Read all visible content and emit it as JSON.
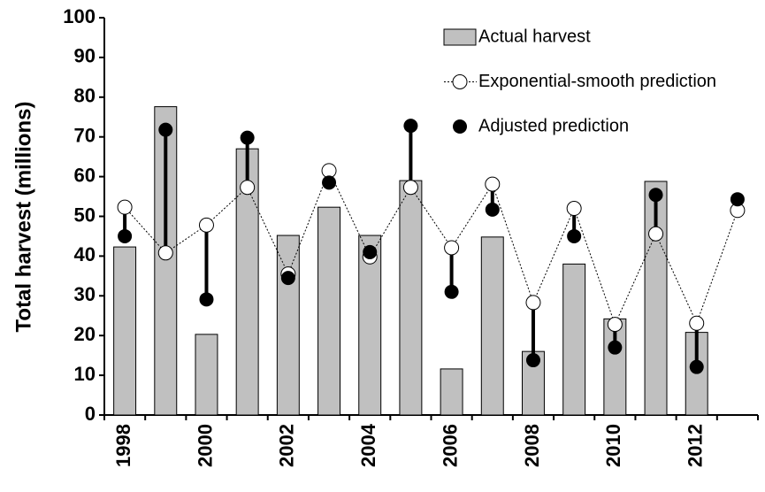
{
  "chart_data": {
    "type": "bar",
    "y_label": "Total harvest (millions)",
    "categories": [
      "1998",
      null,
      "2000",
      null,
      "2002",
      null,
      "2004",
      null,
      "2006",
      null,
      "2008",
      null,
      "2010",
      null,
      "2012",
      null
    ],
    "series": [
      {
        "name": "Actual harvest",
        "type": "bar",
        "color": "#c0c0c0",
        "values": [
          42.3,
          77.6,
          20.3,
          67,
          45.2,
          52.3,
          45.2,
          59,
          11.6,
          44.8,
          16,
          38,
          24.2,
          58.8,
          20.8,
          null
        ]
      },
      {
        "name": "Exponential-smooth prediction",
        "type": "line",
        "color": "#ffffff",
        "values": [
          52.3,
          40.8,
          47.8,
          57.3,
          35.5,
          61.5,
          39.8,
          57.3,
          42.1,
          58.1,
          28.3,
          52,
          22.8,
          45.6,
          23.1,
          51.5
        ]
      },
      {
        "name": "Adjusted prediction",
        "type": "scatter",
        "color": "#000000",
        "values": [
          45,
          71.8,
          29.1,
          69.8,
          34.5,
          58.5,
          41,
          72.8,
          31,
          51.7,
          13.8,
          45,
          17,
          55.4,
          12.1,
          54.3
        ]
      }
    ],
    "ylim": [
      0,
      100
    ],
    "yticks": [
      0,
      10,
      20,
      30,
      40,
      50,
      60,
      70,
      80,
      90,
      100
    ],
    "grid": false
  }
}
